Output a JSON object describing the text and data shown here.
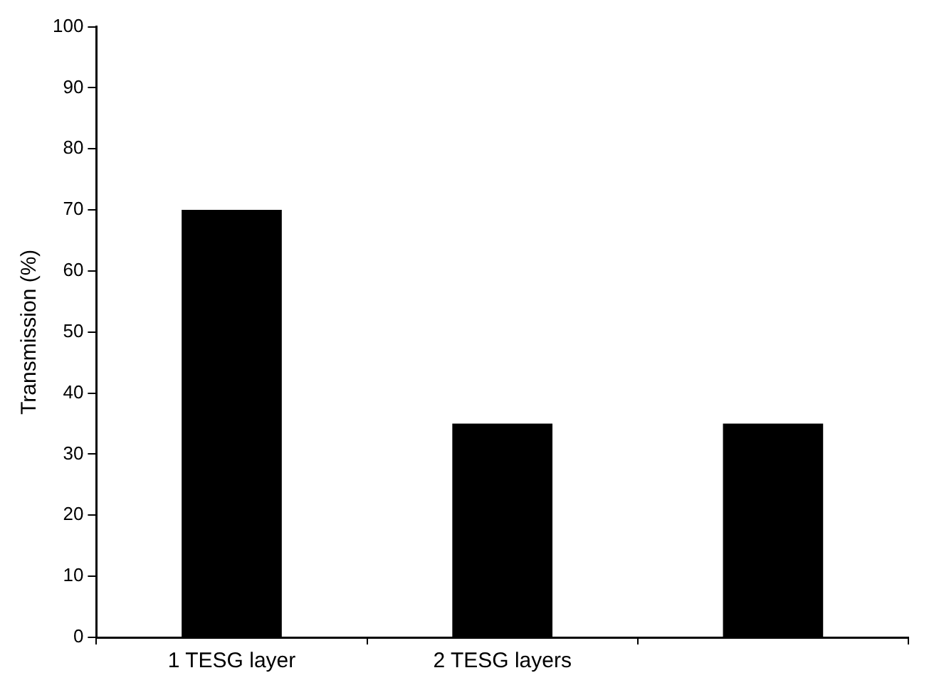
{
  "chart_data": {
    "type": "bar",
    "ylabel": "Transmission (%)",
    "categories": [
      "1 TESG layer",
      "2 TESG layers",
      null
    ],
    "values": [
      70,
      35,
      35
    ],
    "color": "#000000",
    "ylim": [
      0,
      100
    ],
    "yticks": [
      0,
      10,
      20,
      30,
      40,
      50,
      60,
      70,
      80,
      90,
      100
    ],
    "grid": false,
    "legend": false
  }
}
